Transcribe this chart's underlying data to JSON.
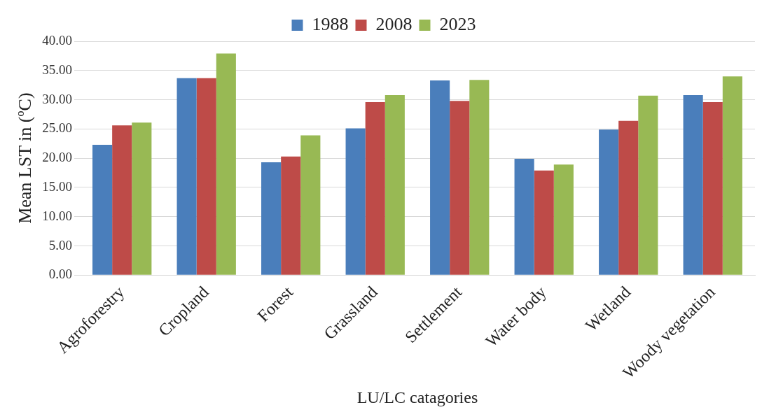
{
  "chart_data": {
    "type": "bar",
    "xlabel": "LU/LC catagories",
    "ylabel": "Mean LST in (ºC)",
    "categories": [
      "Agroforestry",
      "Cropland",
      "Forest",
      "Grassland",
      "Settlement",
      "Water body",
      "Wetland",
      "Woody vegetation"
    ],
    "series": [
      {
        "name": "1988",
        "color": "#4a7ebb",
        "values": [
          22.3,
          33.7,
          19.3,
          25.1,
          33.3,
          19.9,
          24.9,
          30.8
        ]
      },
      {
        "name": "2008",
        "color": "#be4b48",
        "values": [
          25.6,
          33.7,
          20.3,
          29.6,
          29.8,
          17.9,
          26.4,
          29.6
        ]
      },
      {
        "name": "2023",
        "color": "#98b954",
        "values": [
          26.1,
          37.9,
          23.9,
          30.8,
          33.4,
          18.9,
          30.7,
          34.0
        ]
      }
    ],
    "ylim": [
      0,
      40
    ],
    "yticks": [
      {
        "value": 0,
        "label": "0.00"
      },
      {
        "value": 5,
        "label": "5.00"
      },
      {
        "value": 10,
        "label": "10.00"
      },
      {
        "value": 15,
        "label": "15.00"
      },
      {
        "value": 20,
        "label": "20.00"
      },
      {
        "value": 25,
        "label": "25.00"
      },
      {
        "value": 30,
        "label": "30.00"
      },
      {
        "value": 35,
        "label": "35.00"
      },
      {
        "value": 40,
        "label": "40.00"
      }
    ],
    "grid": "y",
    "legend": "top"
  }
}
